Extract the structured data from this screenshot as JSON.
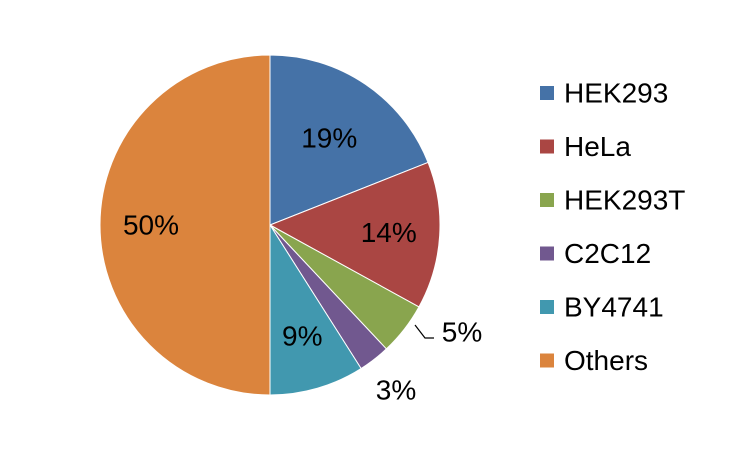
{
  "chart_data": {
    "type": "pie",
    "title": "",
    "legend_position": "right",
    "slices": [
      {
        "label": "HEK293",
        "value": 19,
        "value_label": "19%",
        "color": "#4572A7"
      },
      {
        "label": "HeLa",
        "value": 14,
        "value_label": "14%",
        "color": "#AA4643"
      },
      {
        "label": "HEK293T",
        "value": 5,
        "value_label": "5%",
        "color": "#89A54E"
      },
      {
        "label": "C2C12",
        "value": 3,
        "value_label": "3%",
        "color": "#71588F"
      },
      {
        "label": "BY4741",
        "value": 9,
        "value_label": "9%",
        "color": "#4198AF"
      },
      {
        "label": "Others",
        "value": 50,
        "value_label": "50%",
        "color": "#DB843D"
      }
    ]
  }
}
